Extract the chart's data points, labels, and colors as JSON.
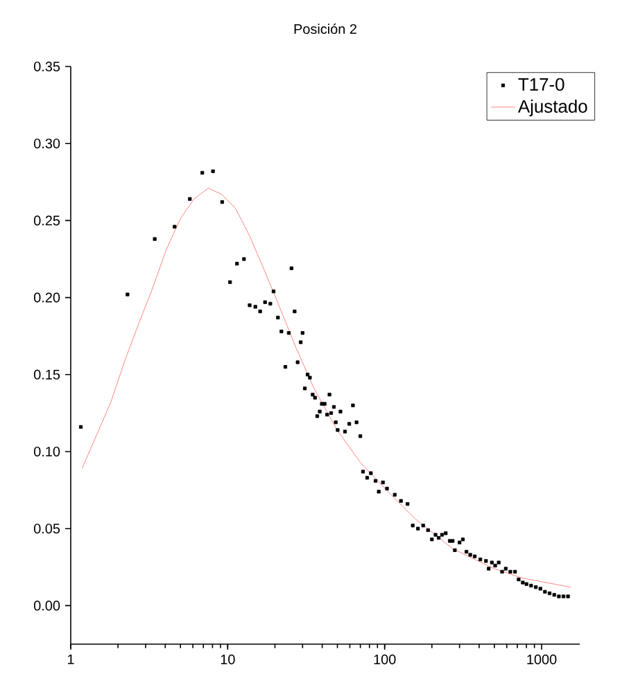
{
  "chart_data": {
    "type": "scatter",
    "title": "Posición 2",
    "log": "x",
    "xlim": [
      1,
      1750
    ],
    "ylim": [
      -0.025,
      0.35
    ],
    "xticks": [
      1,
      10,
      100,
      1000
    ],
    "yticks": [
      {
        "value": 0,
        "label": "0.00"
      },
      {
        "value": 0.05,
        "label": "0.05"
      },
      {
        "value": 0.1,
        "label": "0.10"
      },
      {
        "value": 0.15,
        "label": "0.15"
      },
      {
        "value": 0.2,
        "label": "0.20"
      },
      {
        "value": 0.25,
        "label": "0.25"
      },
      {
        "value": 0.3,
        "label": "0.30"
      },
      {
        "value": 0.35,
        "label": "0.35"
      }
    ],
    "grid": false,
    "legend": "top right",
    "series": [
      {
        "name": "T17-0",
        "marker": "square",
        "color": "#000000",
        "x": [
          1.16,
          2.3,
          3.43,
          4.59,
          5.74,
          6.89,
          8.06,
          9.22,
          10.35,
          11.46,
          12.7,
          13.8,
          15.0,
          16.1,
          17.3,
          18.7,
          19.6,
          20.9,
          22.0,
          23.3,
          24.5,
          25.5,
          26.7,
          27.9,
          29.2,
          30.0,
          31.0,
          32.3,
          33.4,
          34.8,
          36.0,
          37.2,
          38.6,
          39.8,
          41.5,
          43.0,
          44.5,
          45.6,
          47.5,
          48.8,
          50.2,
          52.3,
          55.9,
          59.5,
          62.8,
          66.2,
          70.0,
          72.8,
          77.4,
          81.7,
          87.5,
          91.7,
          97.5,
          103.5,
          116,
          127,
          140,
          151,
          163,
          176,
          189,
          200,
          211,
          221,
          232,
          245,
          260,
          271,
          280,
          300,
          315,
          332,
          351,
          375,
          407,
          442,
          460,
          482,
          506,
          533,
          560,
          591,
          632,
          677,
          714,
          759,
          801,
          857,
          918,
          982,
          1050,
          1124,
          1203,
          1288,
          1378,
          1473
        ],
        "values": [
          0.116,
          0.202,
          0.238,
          0.246,
          0.264,
          0.281,
          0.282,
          0.262,
          0.21,
          0.222,
          0.225,
          0.195,
          0.194,
          0.191,
          0.197,
          0.196,
          0.204,
          0.187,
          0.178,
          0.155,
          0.177,
          0.219,
          0.191,
          0.158,
          0.171,
          0.177,
          0.141,
          0.15,
          0.148,
          0.137,
          0.135,
          0.123,
          0.126,
          0.131,
          0.131,
          0.124,
          0.137,
          0.125,
          0.129,
          0.119,
          0.114,
          0.126,
          0.113,
          0.118,
          0.13,
          0.119,
          0.11,
          0.087,
          0.083,
          0.086,
          0.081,
          0.074,
          0.08,
          0.076,
          0.072,
          0.068,
          0.066,
          0.052,
          0.05,
          0.052,
          0.049,
          0.043,
          0.046,
          0.044,
          0.046,
          0.047,
          0.042,
          0.042,
          0.036,
          0.041,
          0.043,
          0.035,
          0.033,
          0.032,
          0.03,
          0.029,
          0.024,
          0.028,
          0.026,
          0.028,
          0.022,
          0.024,
          0.022,
          0.022,
          0.017,
          0.015,
          0.014,
          0.013,
          0.012,
          0.011,
          0.009,
          0.008,
          0.007,
          0.006,
          0.006,
          0.006
        ]
      },
      {
        "name": "Ajustado",
        "type": "line",
        "color": "#ff6666",
        "x": [
          1.18,
          1.8,
          2.21,
          2.71,
          3.32,
          4.06,
          4.98,
          6.1,
          7.53,
          9.16,
          11.2,
          13.8,
          16.9,
          20.6,
          24.5,
          27.1,
          35.5,
          49.8,
          70,
          105,
          158,
          271,
          499,
          750,
          1527
        ],
        "values": [
          0.089,
          0.132,
          0.159,
          0.183,
          0.206,
          0.231,
          0.251,
          0.264,
          0.271,
          0.267,
          0.258,
          0.24,
          0.219,
          0.198,
          0.179,
          0.168,
          0.141,
          0.114,
          0.093,
          0.074,
          0.056,
          0.037,
          0.024,
          0.018,
          0.012
        ]
      }
    ]
  }
}
